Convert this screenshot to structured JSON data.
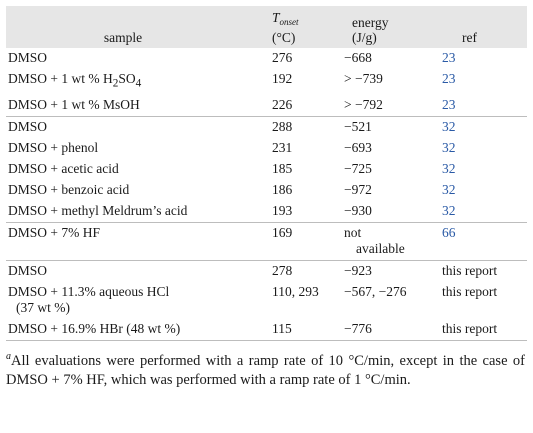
{
  "table": {
    "headers": {
      "sample": "sample",
      "temp_symbol": "T",
      "temp_subscript": "onset",
      "temp_unit": "(°C)",
      "energy_label": "energy",
      "energy_unit": "(J/g)",
      "ref": "ref"
    },
    "rows": [
      {
        "sample": "DMSO",
        "sample_sub": "",
        "sample_tail": "",
        "sample_line2": "",
        "temp": "276",
        "energy": "−668",
        "energy_line2": "",
        "ref": "23",
        "ref_is_link": true,
        "sep": false
      },
      {
        "sample": "DMSO + 1 wt % H",
        "sample_sub": "2",
        "sample_tail": "SO",
        "sample_sub2": "4",
        "sample_line2": "",
        "temp": "192",
        "energy": "> −739",
        "energy_line2": "",
        "ref": "23",
        "ref_is_link": true,
        "sep": false
      },
      {
        "sample": "DMSO + 1 wt % MsOH",
        "sample_sub": "",
        "sample_tail": "",
        "sample_line2": "",
        "temp": "226",
        "energy": "> −792",
        "energy_line2": "",
        "ref": "23",
        "ref_is_link": true,
        "sep": false
      },
      {
        "sample": "DMSO",
        "sample_sub": "",
        "sample_tail": "",
        "sample_line2": "",
        "temp": "288",
        "energy": "−521",
        "energy_line2": "",
        "ref": "32",
        "ref_is_link": true,
        "sep": true
      },
      {
        "sample": "DMSO + phenol",
        "sample_sub": "",
        "sample_tail": "",
        "sample_line2": "",
        "temp": "231",
        "energy": "−693",
        "energy_line2": "",
        "ref": "32",
        "ref_is_link": true,
        "sep": false
      },
      {
        "sample": "DMSO + acetic acid",
        "sample_sub": "",
        "sample_tail": "",
        "sample_line2": "",
        "temp": "185",
        "energy": "−725",
        "energy_line2": "",
        "ref": "32",
        "ref_is_link": true,
        "sep": false
      },
      {
        "sample": "DMSO + benzoic acid",
        "sample_sub": "",
        "sample_tail": "",
        "sample_line2": "",
        "temp": "186",
        "energy": "−972",
        "energy_line2": "",
        "ref": "32",
        "ref_is_link": true,
        "sep": false
      },
      {
        "sample": "DMSO + methyl Meldrum’s acid",
        "sample_sub": "",
        "sample_tail": "",
        "sample_line2": "",
        "temp": "193",
        "energy": "−930",
        "energy_line2": "",
        "ref": "32",
        "ref_is_link": true,
        "sep": false
      },
      {
        "sample": "DMSO + 7% HF",
        "sample_sub": "",
        "sample_tail": "",
        "sample_line2": "",
        "temp": "169",
        "energy": "not",
        "energy_line2": "available",
        "ref": "66",
        "ref_is_link": true,
        "sep": true
      },
      {
        "sample": "DMSO",
        "sample_sub": "",
        "sample_tail": "",
        "sample_line2": "",
        "temp": "278",
        "energy": "−923",
        "energy_line2": "",
        "ref": "this report",
        "ref_is_link": false,
        "sep": true
      },
      {
        "sample": "DMSO + 11.3% aqueous HCl",
        "sample_sub": "",
        "sample_tail": "",
        "sample_line2": "(37 wt %)",
        "temp": "110, 293",
        "energy": "−567, −276",
        "energy_line2": "",
        "ref": "this report",
        "ref_is_link": false,
        "sep": false
      },
      {
        "sample": "DMSO + 16.9% HBr (48 wt %)",
        "sample_sub": "",
        "sample_tail": "",
        "sample_line2": "",
        "temp": "115",
        "energy": "−776",
        "energy_line2": "",
        "ref": "this report",
        "ref_is_link": false,
        "sep": false
      }
    ]
  },
  "footnote": {
    "marker": "a",
    "text": "All evaluations were performed with a ramp rate of 10 °C/min, except in the case of DMSO + 7% HF, which was performed with a ramp rate of 1 °C/min."
  },
  "colors": {
    "header_bg": "#e6e6e6",
    "link": "#2a5aa6",
    "rule": "#bdbdbd"
  }
}
